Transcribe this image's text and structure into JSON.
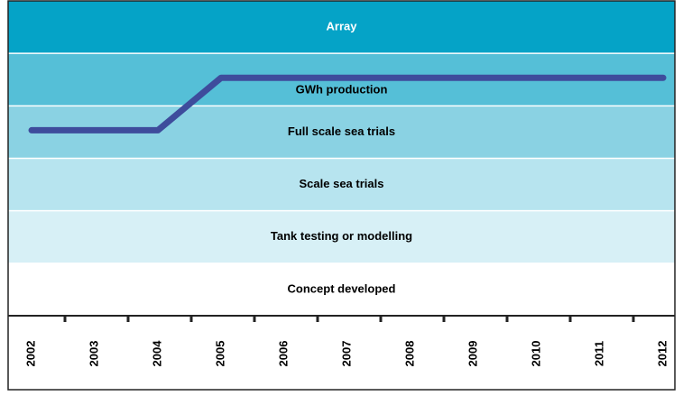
{
  "chart_data": {
    "type": "line",
    "y_categories": [
      "Array",
      "GWh production",
      "Full scale sea trials",
      "Scale sea trials",
      "Tank testing or modelling",
      "Concept developed"
    ],
    "band_colors": [
      "#05a3c7",
      "#55bfd7",
      "#8ad2e3",
      "#b7e4ef",
      "#d7f0f6",
      "#ffffff"
    ],
    "band_text_colors": [
      "#ffffff",
      "#000000",
      "#000000",
      "#000000",
      "#000000",
      "#000000"
    ],
    "categories": [
      "2002",
      "2003",
      "2004",
      "2005",
      "2006",
      "2007",
      "2008",
      "2009",
      "2010",
      "2011",
      "2012"
    ],
    "series": [
      {
        "color": "#3e4c9c",
        "values": [
          "Full scale sea trials",
          "Full scale sea trials",
          "Full scale sea trials",
          "GWh production",
          "GWh production",
          "GWh production",
          "GWh production",
          "GWh production",
          "GWh production",
          "GWh production",
          "GWh production"
        ]
      }
    ]
  }
}
